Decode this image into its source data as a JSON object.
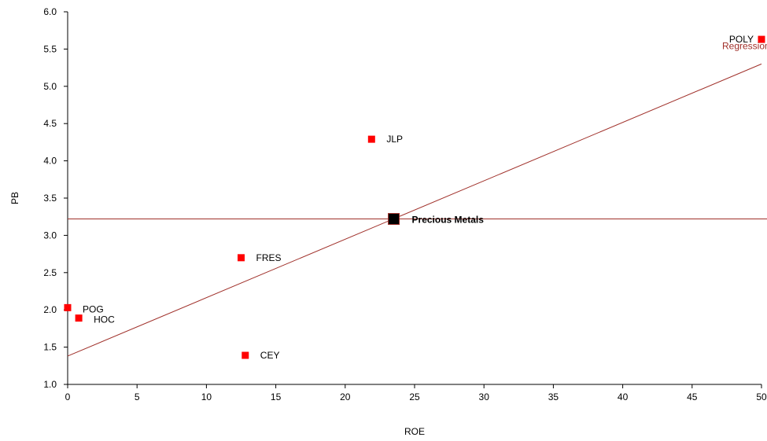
{
  "chart_data": {
    "type": "scatter",
    "title": "",
    "xlabel": "ROE",
    "ylabel": "PB",
    "xlim": [
      0,
      50
    ],
    "ylim": [
      1.0,
      6.0
    ],
    "x_ticks": [
      "0",
      "5",
      "10",
      "15",
      "20",
      "25",
      "30",
      "35",
      "40",
      "45",
      "50"
    ],
    "y_ticks": [
      "1.0",
      "1.5",
      "2.0",
      "2.5",
      "3.0",
      "3.5",
      "4.0",
      "4.5",
      "5.0",
      "5.5",
      "6.0"
    ],
    "grid": false,
    "points": [
      {
        "label": "POLY",
        "x": 50.0,
        "y": 5.63
      },
      {
        "label": "JLP",
        "x": 21.9,
        "y": 4.29
      },
      {
        "label": "FRES",
        "x": 12.5,
        "y": 2.7
      },
      {
        "label": "POG",
        "x": 0.0,
        "y": 2.03
      },
      {
        "label": "HOC",
        "x": 0.8,
        "y": 1.89
      },
      {
        "label": "CEY",
        "x": 12.8,
        "y": 1.39
      }
    ],
    "average_point": {
      "label": "Precious Metals",
      "x": 23.5,
      "y": 3.22
    },
    "regression": {
      "label": "Regression",
      "x": [
        0,
        50
      ],
      "y": [
        1.38,
        5.3
      ]
    },
    "reference_line": {
      "y": 3.22
    },
    "colors": {
      "point": "#ff0000",
      "average_point": "#000000",
      "line": "#a0302a",
      "axis": "#000000"
    }
  }
}
